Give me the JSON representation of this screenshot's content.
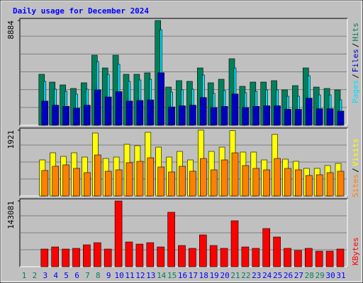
{
  "chart_data": [
    {
      "type": "bar",
      "title": "Daily usage for December 2024",
      "ylim": [
        0,
        8884
      ],
      "yticks": [
        8884
      ],
      "legend_separator": "/",
      "series": [
        {
          "name": "Hits",
          "color": "#00805c",
          "values": [
            0,
            0,
            4322,
            3662,
            3422,
            3121,
            3602,
            5943,
            4862,
            5943,
            4322,
            4322,
            4442,
            8884,
            3241,
            3782,
            3722,
            4862,
            3602,
            3902,
            5643,
            3302,
            3662,
            3662,
            3782,
            3001,
            3362,
            4862,
            3241,
            3121,
            3001
          ]
        },
        {
          "name": "Files",
          "color": "#0000c0",
          "values": [
            0,
            0,
            2050,
            1700,
            1600,
            1450,
            1700,
            3000,
            2400,
            2850,
            2050,
            2100,
            2150,
            4450,
            1550,
            1650,
            1700,
            2350,
            1500,
            1600,
            2650,
            1500,
            1600,
            1650,
            1650,
            1350,
            1350,
            2300,
            1400,
            1400,
            1200
          ]
        },
        {
          "name": "Pages",
          "color": "#00e0ff",
          "values": [
            0,
            0,
            3722,
            3062,
            2881,
            2641,
            3062,
            5403,
            4322,
            5163,
            3722,
            3842,
            3902,
            8104,
            2821,
            3002,
            3062,
            4262,
            2701,
            2941,
            4862,
            2761,
            2881,
            3002,
            3002,
            2461,
            2461,
            4202,
            2581,
            2581,
            2161
          ]
        }
      ]
    },
    {
      "type": "bar",
      "ylim": [
        0,
        1921
      ],
      "yticks": [
        1921
      ],
      "legend_separator": "/",
      "series": [
        {
          "name": "Visits",
          "color": "#ffff00",
          "values": [
            0,
            0,
            1053,
            1260,
            1157,
            1260,
            1136,
            1838,
            1095,
            1136,
            1508,
            1467,
            1859,
            1425,
            1136,
            1301,
            1053,
            1921,
            1301,
            1425,
            1906,
            1281,
            1281,
            1053,
            1797,
            1074,
            1012,
            806,
            806,
            888,
            950
          ]
        },
        {
          "name": "Sites",
          "color": "#ff8000",
          "values": [
            0,
            0,
            744,
            868,
            909,
            806,
            682,
            1198,
            723,
            764,
            971,
            1012,
            1115,
            847,
            702,
            868,
            723,
            1095,
            764,
            1053,
            1260,
            888,
            806,
            764,
            1095,
            806,
            764,
            599,
            620,
            682,
            723
          ]
        }
      ]
    },
    {
      "type": "bar",
      "ylim": [
        0,
        143081
      ],
      "yticks": [
        143081
      ],
      "categories": [
        "1",
        "2",
        "3",
        "4",
        "5",
        "6",
        "7",
        "8",
        "9",
        "10",
        "11",
        "12",
        "13",
        "14",
        "15",
        "16",
        "17",
        "18",
        "19",
        "20",
        "21",
        "22",
        "23",
        "24",
        "25",
        "26",
        "27",
        "28",
        "29",
        "30",
        "31"
      ],
      "category_colors": [
        "#00805c",
        "#00805c",
        "#0000ff",
        "#0000ff",
        "#0000ff",
        "#0000ff",
        "#00805c",
        "#00805c",
        "#0000ff",
        "#0000ff",
        "#0000ff",
        "#0000ff",
        "#0000ff",
        "#00805c",
        "#00805c",
        "#0000ff",
        "#0000ff",
        "#0000ff",
        "#0000ff",
        "#0000ff",
        "#00805c",
        "#00805c",
        "#0000ff",
        "#0000ff",
        "#0000ff",
        "#0000ff",
        "#0000ff",
        "#00805c",
        "#00805c",
        "#0000ff",
        "#0000ff"
      ],
      "series": [
        {
          "name": "KBytes",
          "color": "#ff0000",
          "values": [
            0,
            0,
            38463,
            43078,
            38463,
            40001,
            47694,
            52309,
            38463,
            143081,
            53848,
            49232,
            52309,
            43078,
            118463,
            46155,
            40001,
            69233,
            46155,
            40001,
            100003,
            43078,
            40001,
            83079,
            64617,
            40001,
            35386,
            40001,
            33847,
            33847,
            38463
          ]
        }
      ]
    }
  ]
}
